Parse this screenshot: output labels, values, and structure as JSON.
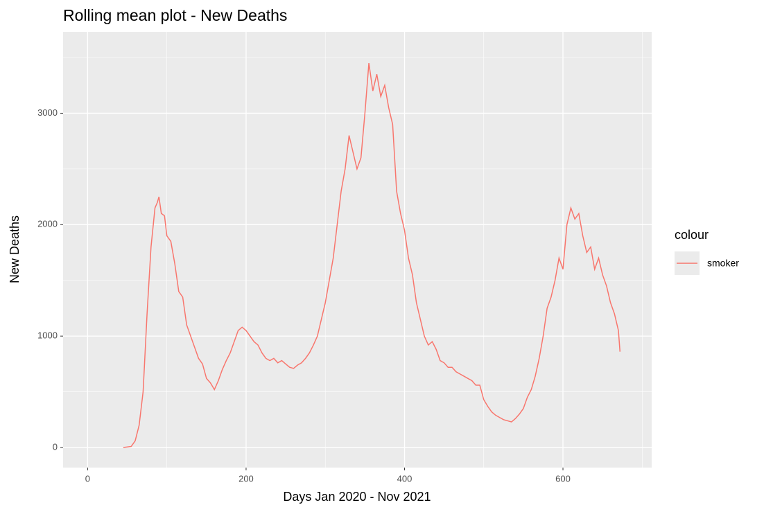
{
  "chart_data": {
    "type": "line",
    "title": "Rolling mean plot - New Deaths",
    "x_label": "Days Jan 2020 - Nov 2021",
    "y_label": "New Deaths",
    "legend_title": "colour",
    "legend": "right",
    "grid": true,
    "xlim": [
      -31,
      712
    ],
    "xticks": [
      0,
      200,
      400,
      600
    ],
    "ylim": [
      -180,
      3730
    ],
    "yticks": [
      0,
      1000,
      2000,
      3000
    ],
    "x": [
      45,
      55,
      60,
      65,
      70,
      75,
      80,
      85,
      88,
      90,
      93,
      97,
      100,
      105,
      110,
      115,
      120,
      125,
      130,
      135,
      140,
      145,
      150,
      155,
      160,
      165,
      170,
      175,
      180,
      185,
      190,
      195,
      200,
      205,
      210,
      215,
      220,
      225,
      230,
      235,
      240,
      245,
      250,
      255,
      260,
      265,
      270,
      275,
      280,
      285,
      290,
      295,
      300,
      305,
      310,
      315,
      320,
      325,
      330,
      335,
      340,
      345,
      350,
      355,
      360,
      365,
      370,
      375,
      380,
      385,
      390,
      395,
      400,
      405,
      410,
      415,
      420,
      425,
      430,
      435,
      440,
      445,
      450,
      455,
      460,
      465,
      470,
      475,
      480,
      485,
      490,
      495,
      500,
      505,
      510,
      515,
      520,
      525,
      530,
      535,
      540,
      545,
      550,
      555,
      560,
      565,
      570,
      575,
      580,
      585,
      590,
      595,
      600,
      605,
      610,
      615,
      620,
      625,
      630,
      635,
      640,
      645,
      650,
      655,
      660,
      665,
      670,
      672
    ],
    "series": [
      {
        "name": "smoker",
        "color": "#F8766D",
        "values": [
          0,
          10,
          60,
          200,
          500,
          1200,
          1800,
          2150,
          2200,
          2250,
          2100,
          2080,
          1900,
          1850,
          1650,
          1400,
          1350,
          1100,
          1000,
          900,
          800,
          750,
          620,
          580,
          520,
          600,
          700,
          780,
          850,
          950,
          1050,
          1080,
          1050,
          1000,
          950,
          920,
          850,
          800,
          780,
          800,
          760,
          780,
          750,
          720,
          710,
          740,
          760,
          800,
          850,
          920,
          1000,
          1150,
          1300,
          1500,
          1700,
          2000,
          2300,
          2500,
          2800,
          2650,
          2500,
          2600,
          3000,
          3450,
          3200,
          3350,
          3150,
          3250,
          3050,
          2900,
          2300,
          2100,
          1950,
          1700,
          1550,
          1300,
          1150,
          1000,
          920,
          950,
          880,
          780,
          760,
          720,
          720,
          680,
          660,
          640,
          620,
          600,
          560,
          560,
          430,
          370,
          320,
          290,
          270,
          250,
          240,
          230,
          260,
          300,
          350,
          450,
          520,
          640,
          800,
          1000,
          1250,
          1350,
          1500,
          1700,
          1600,
          2000,
          2150,
          2050,
          2100,
          1900,
          1750,
          1800,
          1600,
          1700,
          1550,
          1450,
          1300,
          1200,
          1050,
          860
        ]
      }
    ]
  }
}
